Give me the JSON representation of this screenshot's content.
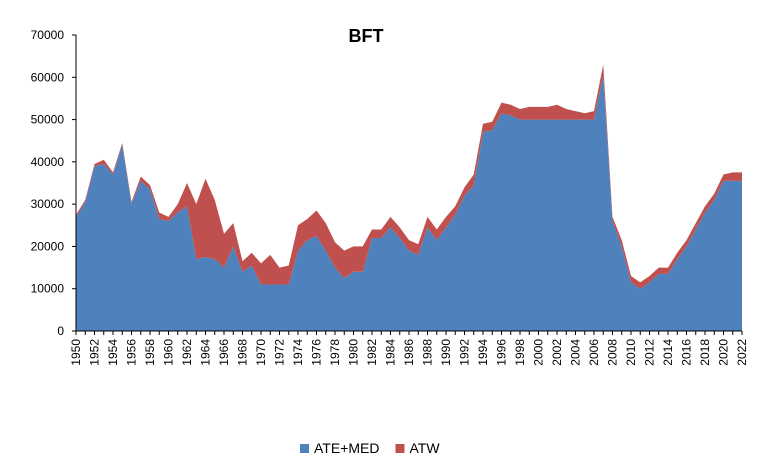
{
  "chart_data": {
    "type": "area",
    "stacked": true,
    "title": "BFT",
    "xlabel": "",
    "ylabel": "",
    "ylim": [
      0,
      70000
    ],
    "y_ticks": [
      0,
      10000,
      20000,
      30000,
      40000,
      50000,
      60000,
      70000
    ],
    "y_tick_labels": [
      "0",
      "10000",
      "20000",
      "30000",
      "40000",
      "50000",
      "60000",
      "70000"
    ],
    "x_tick_labels": [
      "1950",
      "1952",
      "1954",
      "1956",
      "1958",
      "1960",
      "1962",
      "1964",
      "1966",
      "1968",
      "1970",
      "1972",
      "1974",
      "1976",
      "1978",
      "1980",
      "1982",
      "1984",
      "1986",
      "1988",
      "1990",
      "1992",
      "1994",
      "1996",
      "1998",
      "2000",
      "2002",
      "2004",
      "2006",
      "2008",
      "2010",
      "2012",
      "2014",
      "2016",
      "2018",
      "2020",
      "2022"
    ],
    "grid": false,
    "legend_position": "bottom",
    "x": [
      1950,
      1951,
      1952,
      1953,
      1954,
      1955,
      1956,
      1957,
      1958,
      1959,
      1960,
      1961,
      1962,
      1963,
      1964,
      1965,
      1966,
      1967,
      1968,
      1969,
      1970,
      1971,
      1972,
      1973,
      1974,
      1975,
      1976,
      1977,
      1978,
      1979,
      1980,
      1981,
      1982,
      1983,
      1984,
      1985,
      1986,
      1987,
      1988,
      1989,
      1990,
      1991,
      1992,
      1993,
      1994,
      1995,
      1996,
      1997,
      1998,
      1999,
      2000,
      2001,
      2002,
      2003,
      2004,
      2005,
      2006,
      2007,
      2008,
      2009,
      2010,
      2011,
      2012,
      2013,
      2014,
      2015,
      2016,
      2017,
      2018,
      2019,
      2020,
      2021,
      2022
    ],
    "series": [
      {
        "name": "ATE+MED",
        "color": "#4f81bd",
        "values": [
          27000,
          30500,
          39000,
          39500,
          37000,
          44000,
          30000,
          35500,
          33500,
          26500,
          26000,
          28000,
          29500,
          17000,
          17500,
          17000,
          15000,
          20000,
          14000,
          15500,
          11000,
          11000,
          11000,
          11000,
          19000,
          21500,
          22500,
          19000,
          15000,
          12500,
          14000,
          14000,
          22000,
          22000,
          24500,
          22000,
          19000,
          18000,
          24500,
          21500,
          24500,
          27500,
          32000,
          34500,
          47000,
          47500,
          51500,
          51000,
          50000,
          50000,
          50000,
          50000,
          50000,
          50000,
          50000,
          50000,
          50000,
          60500,
          26000,
          20000,
          11500,
          10000,
          11500,
          13500,
          13500,
          17000,
          20000,
          24000,
          28000,
          31000,
          35500,
          35500,
          35500
        ]
      },
      {
        "name": "ATW",
        "color": "#c0504d",
        "values": [
          500,
          500,
          500,
          1000,
          500,
          500,
          500,
          1000,
          1000,
          1500,
          1000,
          2000,
          5500,
          13000,
          18500,
          14000,
          8000,
          5500,
          2500,
          3000,
          5000,
          7000,
          4000,
          4500,
          6000,
          5000,
          6000,
          6500,
          6000,
          6500,
          6000,
          6000,
          2000,
          2000,
          2500,
          2500,
          2500,
          2500,
          2500,
          2500,
          2500,
          2000,
          2000,
          2500,
          2000,
          2000,
          2500,
          2500,
          2500,
          3000,
          3000,
          3000,
          3500,
          2500,
          2000,
          1500,
          2000,
          2500,
          1000,
          1500,
          1500,
          1500,
          1500,
          1500,
          1500,
          1500,
          1500,
          1500,
          1500,
          1500,
          1500,
          2000,
          2000
        ]
      }
    ]
  }
}
